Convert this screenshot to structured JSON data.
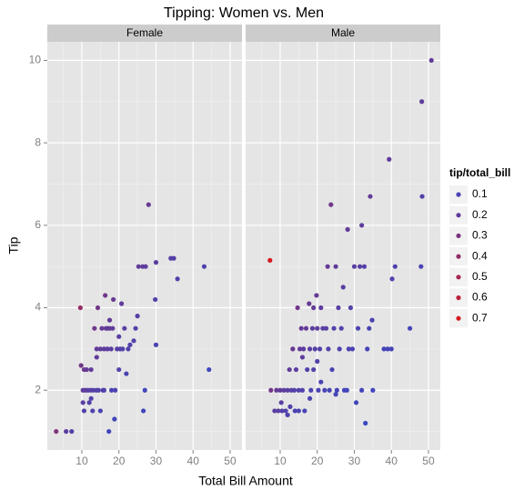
{
  "chart_data": {
    "type": "scatter",
    "title": "Tipping: Women vs. Men",
    "xlabel": "Total Bill Amount",
    "ylabel": "Tip",
    "xlim": [
      0.68,
      53.2
    ],
    "ylim": [
      0.55,
      10.45
    ],
    "xticks": [
      10,
      20,
      30,
      40,
      50
    ],
    "yticks": [
      2,
      4,
      6,
      8,
      10
    ],
    "grid": true,
    "color_scale": {
      "low": "#3b47c2",
      "high": "#d7191c",
      "clim": [
        0.036,
        0.71
      ]
    },
    "legend": {
      "title": "tip/total_bill",
      "values": [
        0.1,
        0.2,
        0.3,
        0.4,
        0.5,
        0.6,
        0.7
      ],
      "position": "right"
    },
    "facets": [
      {
        "name": "Female",
        "x": [
          3.07,
          5.75,
          7.25,
          9.6,
          10.3,
          10.6,
          10.3,
          10.6,
          11,
          11.3,
          11.6,
          12,
          12.3,
          12.5,
          12.9,
          13,
          13.4,
          13.9,
          14,
          14.3,
          14.5,
          15,
          15.4,
          15.7,
          16,
          16.3,
          16.5,
          16.9,
          17,
          17.3,
          17.5,
          17.9,
          18.3,
          18.5,
          18.8,
          19,
          19.5,
          20,
          20.3,
          20.7,
          21,
          21.5,
          22.5,
          23,
          24,
          24.5,
          25,
          25.3,
          26.4,
          26.6,
          27,
          27.2,
          28,
          29.8,
          30,
          30,
          34,
          34.8,
          35.8,
          43,
          44.3,
          20,
          22,
          18,
          16,
          15,
          12.5,
          14,
          17.5,
          9.8
        ],
        "y": [
          1,
          1,
          1,
          4,
          1.7,
          1.5,
          2,
          2.5,
          2,
          2.5,
          2,
          1.7,
          2,
          2.5,
          1.5,
          2,
          3.5,
          2,
          3,
          4,
          2,
          3,
          3.5,
          2,
          3,
          4.3,
          3.5,
          3,
          3.5,
          1,
          3.5,
          3,
          3.5,
          4.2,
          1.3,
          2,
          3,
          3.3,
          3,
          4.1,
          3,
          3.5,
          3,
          3.1,
          3.2,
          3.5,
          3.8,
          5,
          5,
          1.5,
          2,
          5,
          6.5,
          4.2,
          3.1,
          5.1,
          5.2,
          5.2,
          4.7,
          5,
          2.5,
          2.5,
          2.4,
          2,
          2,
          1.5,
          1.8,
          2.8,
          3.7,
          2.6
        ],
        "color_values": [
          0.33,
          0.17,
          0.14,
          0.42,
          0.17,
          0.14,
          0.19,
          0.24,
          0.18,
          0.22,
          0.17,
          0.14,
          0.16,
          0.2,
          0.12,
          0.15,
          0.26,
          0.14,
          0.21,
          0.28,
          0.14,
          0.2,
          0.23,
          0.13,
          0.19,
          0.26,
          0.21,
          0.18,
          0.21,
          0.06,
          0.2,
          0.17,
          0.19,
          0.23,
          0.07,
          0.11,
          0.15,
          0.17,
          0.15,
          0.2,
          0.14,
          0.16,
          0.13,
          0.13,
          0.13,
          0.14,
          0.15,
          0.2,
          0.19,
          0.06,
          0.07,
          0.18,
          0.23,
          0.14,
          0.1,
          0.17,
          0.15,
          0.15,
          0.13,
          0.12,
          0.06,
          0.13,
          0.11,
          0.11,
          0.13,
          0.1,
          0.14,
          0.2,
          0.21,
          0.27
        ]
      },
      {
        "name": "Male",
        "x": [
          7.25,
          7.5,
          8.5,
          9,
          9.5,
          10,
          10.3,
          10.5,
          11,
          11.5,
          12,
          12.5,
          12.7,
          13,
          13.4,
          13.8,
          14,
          14.3,
          14.7,
          15,
          15.3,
          15.7,
          16,
          16.3,
          16.6,
          17,
          17.3,
          17.8,
          18,
          18.3,
          18.7,
          19,
          19.4,
          19.8,
          20,
          20.3,
          20.7,
          21,
          21.5,
          22,
          22.4,
          22.8,
          23,
          23.3,
          23.7,
          24,
          24.5,
          25,
          25.3,
          25.7,
          26,
          26.5,
          27,
          27.3,
          28,
          28.2,
          28.5,
          29,
          29.5,
          30,
          30.5,
          31,
          31.5,
          32,
          32.7,
          33.5,
          33,
          34,
          34.3,
          34.8,
          38,
          39,
          39.4,
          40,
          40.2,
          41,
          45,
          48,
          48.2,
          48.3,
          50.8,
          15,
          12,
          19,
          21,
          16,
          20,
          25,
          32,
          35,
          18
        ],
        "y": [
          5.15,
          2,
          1.5,
          2,
          1.5,
          2,
          1.7,
          1.5,
          2,
          1.5,
          2,
          2.5,
          1.6,
          2,
          3,
          2,
          1.5,
          2.5,
          4,
          2,
          3,
          3.5,
          2,
          3,
          1.5,
          3.5,
          2.5,
          4.1,
          3,
          2,
          3.5,
          4,
          3,
          4.3,
          3.5,
          2,
          3,
          4,
          3.5,
          2,
          3.5,
          5,
          3,
          2,
          6.5,
          2.5,
          3.5,
          5,
          2,
          4,
          3,
          3.5,
          4.5,
          2,
          2,
          5.9,
          3,
          4,
          3,
          5,
          1.7,
          3.5,
          5,
          6,
          5,
          3,
          1.2,
          3.5,
          6.7,
          3.7,
          3,
          3,
          7.6,
          3,
          4.7,
          5,
          3.5,
          5,
          9,
          6.7,
          10,
          1.5,
          1.4,
          2.5,
          2.2,
          2.8,
          2.7,
          1.9,
          2,
          2,
          1.8
        ],
        "color_values": [
          0.71,
          0.27,
          0.18,
          0.22,
          0.16,
          0.2,
          0.17,
          0.14,
          0.18,
          0.13,
          0.17,
          0.2,
          0.13,
          0.15,
          0.22,
          0.14,
          0.11,
          0.17,
          0.27,
          0.13,
          0.2,
          0.22,
          0.13,
          0.18,
          0.09,
          0.21,
          0.14,
          0.23,
          0.17,
          0.11,
          0.19,
          0.21,
          0.15,
          0.22,
          0.18,
          0.1,
          0.14,
          0.19,
          0.16,
          0.09,
          0.16,
          0.22,
          0.13,
          0.09,
          0.27,
          0.1,
          0.14,
          0.2,
          0.08,
          0.16,
          0.12,
          0.13,
          0.17,
          0.07,
          0.07,
          0.21,
          0.11,
          0.14,
          0.1,
          0.17,
          0.06,
          0.11,
          0.16,
          0.19,
          0.15,
          0.09,
          0.04,
          0.1,
          0.2,
          0.11,
          0.08,
          0.08,
          0.19,
          0.08,
          0.12,
          0.12,
          0.08,
          0.1,
          0.19,
          0.14,
          0.2,
          0.1,
          0.12,
          0.13,
          0.1,
          0.18,
          0.14,
          0.08,
          0.06,
          0.06,
          0.1
        ]
      }
    ]
  }
}
